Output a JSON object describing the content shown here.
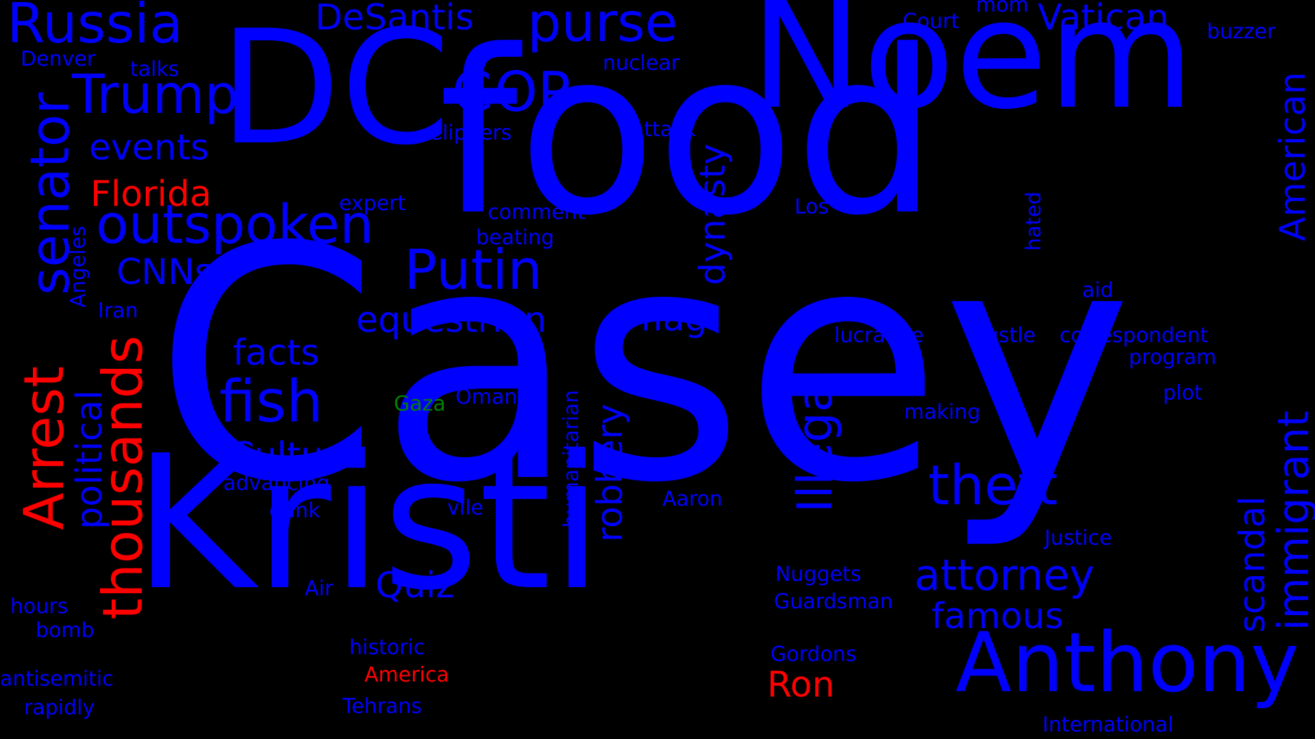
{
  "colors": {
    "background": "#000000",
    "primary": "#0000FF",
    "highlight": "#FF0000",
    "accent": "#008000"
  },
  "words": [
    {
      "text": "Casey",
      "color": "primary"
    },
    {
      "text": "food",
      "color": "primary"
    },
    {
      "text": "Kristi",
      "color": "primary"
    },
    {
      "text": "DC",
      "color": "primary"
    },
    {
      "text": "Noem",
      "color": "primary"
    },
    {
      "text": "Anthony",
      "color": "primary"
    },
    {
      "text": "Putin",
      "color": "primary"
    },
    {
      "text": "outspoken",
      "color": "primary"
    },
    {
      "text": "Russia",
      "color": "primary"
    },
    {
      "text": "purse",
      "color": "primary"
    },
    {
      "text": "Trump",
      "color": "primary"
    },
    {
      "text": "GOP",
      "color": "primary"
    },
    {
      "text": "senator",
      "color": "primary"
    },
    {
      "text": "Arrest",
      "color": "highlight"
    },
    {
      "text": "thousands",
      "color": "highlight"
    },
    {
      "text": "fish",
      "color": "primary"
    },
    {
      "text": "theft",
      "color": "primary"
    },
    {
      "text": "attorney",
      "color": "primary"
    },
    {
      "text": "Illegal",
      "color": "primary"
    },
    {
      "text": "immigrant",
      "color": "primary"
    },
    {
      "text": "DeSantis",
      "color": "primary"
    },
    {
      "text": "Vatican",
      "color": "primary"
    },
    {
      "text": "events",
      "color": "primary"
    },
    {
      "text": "Florida",
      "color": "highlight"
    },
    {
      "text": "equestrian",
      "color": "primary"
    },
    {
      "text": "CNNs",
      "color": "primary"
    },
    {
      "text": "facts",
      "color": "primary"
    },
    {
      "text": "Culture",
      "color": "primary"
    },
    {
      "text": "flag",
      "color": "primary"
    },
    {
      "text": "dynasty",
      "color": "primary"
    },
    {
      "text": "robbery",
      "color": "primary"
    },
    {
      "text": "Quiz",
      "color": "primary"
    },
    {
      "text": "political",
      "color": "primary"
    },
    {
      "text": "famous",
      "color": "primary"
    },
    {
      "text": "scandal",
      "color": "primary"
    },
    {
      "text": "American",
      "color": "primary"
    },
    {
      "text": "Ron",
      "color": "highlight"
    },
    {
      "text": "Denver",
      "color": "primary"
    },
    {
      "text": "talks",
      "color": "primary"
    },
    {
      "text": "nuclear",
      "color": "primary"
    },
    {
      "text": "Court",
      "color": "primary"
    },
    {
      "text": "mom",
      "color": "primary"
    },
    {
      "text": "buzzer",
      "color": "primary"
    },
    {
      "text": "Clippers",
      "color": "primary"
    },
    {
      "text": "attack",
      "color": "primary"
    },
    {
      "text": "expert",
      "color": "primary"
    },
    {
      "text": "comment",
      "color": "primary"
    },
    {
      "text": "beating",
      "color": "primary"
    },
    {
      "text": "Los",
      "color": "primary"
    },
    {
      "text": "hated",
      "color": "primary"
    },
    {
      "text": "Angeles",
      "color": "primary"
    },
    {
      "text": "Iran",
      "color": "primary"
    },
    {
      "text": "aid",
      "color": "primary"
    },
    {
      "text": "lucrative",
      "color": "primary"
    },
    {
      "text": "hustle",
      "color": "primary"
    },
    {
      "text": "correspondent",
      "color": "primary"
    },
    {
      "text": "program",
      "color": "primary"
    },
    {
      "text": "plot",
      "color": "primary"
    },
    {
      "text": "Gaza",
      "color": "accent"
    },
    {
      "text": "Oman",
      "color": "primary"
    },
    {
      "text": "humanitarian",
      "color": "primary"
    },
    {
      "text": "making",
      "color": "primary"
    },
    {
      "text": "advancing",
      "color": "primary"
    },
    {
      "text": "dunk",
      "color": "primary"
    },
    {
      "text": "vile",
      "color": "primary"
    },
    {
      "text": "Aaron",
      "color": "primary"
    },
    {
      "text": "Justice",
      "color": "primary"
    },
    {
      "text": "Nuggets",
      "color": "primary"
    },
    {
      "text": "Guardsman",
      "color": "primary"
    },
    {
      "text": "Air",
      "color": "primary"
    },
    {
      "text": "hours",
      "color": "primary"
    },
    {
      "text": "bomb",
      "color": "primary"
    },
    {
      "text": "historic",
      "color": "primary"
    },
    {
      "text": "America",
      "color": "highlight"
    },
    {
      "text": "Gordons",
      "color": "primary"
    },
    {
      "text": "antisemitic",
      "color": "primary"
    },
    {
      "text": "rapidly",
      "color": "primary"
    },
    {
      "text": "Tehrans",
      "color": "primary"
    },
    {
      "text": "International",
      "color": "primary"
    }
  ]
}
